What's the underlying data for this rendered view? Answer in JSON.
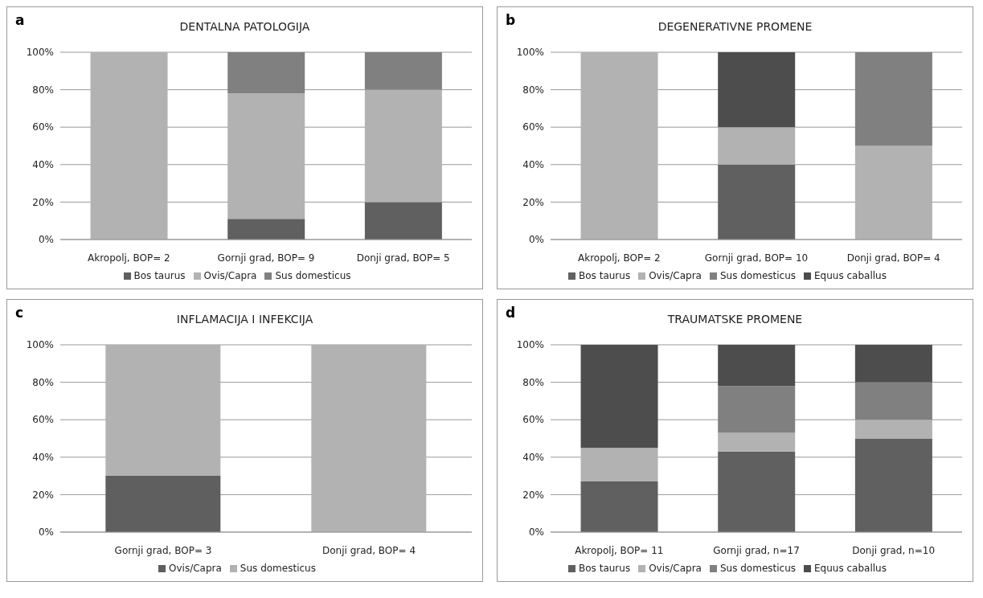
{
  "chart_data": [
    {
      "type": "bar",
      "stacked": true,
      "title": "DENTALNA PATOLOGIJA",
      "annotations": [
        "a"
      ],
      "categories": [
        "Akropolj, BOP= 2",
        "Gornji grad, BOP=  9",
        "Donji grad, BOP= 5"
      ],
      "series": [
        {
          "name": "Bos taurus",
          "color": "#606060",
          "values": [
            0,
            11,
            20
          ]
        },
        {
          "name": "Ovis/Capra",
          "color": "#b2b2b2",
          "values": [
            100,
            67,
            60
          ]
        },
        {
          "name": "Sus domesticus",
          "color": "#808080",
          "values": [
            0,
            22,
            20
          ]
        }
      ],
      "ylim": [
        0,
        100
      ],
      "yticks": [
        {
          "value": 0,
          "label": "0%"
        },
        {
          "value": 20,
          "label": "20%"
        },
        {
          "value": 40,
          "label": "40%"
        },
        {
          "value": 60,
          "label": "60%"
        },
        {
          "value": 80,
          "label": "80%"
        },
        {
          "value": 100,
          "label": "100%"
        }
      ],
      "grid": "y",
      "legend": "bottom"
    },
    {
      "type": "bar",
      "stacked": true,
      "title": "DEGENERATIVNE PROMENE",
      "annotations": [
        "b"
      ],
      "categories": [
        "Akropolj, BOP= 2",
        "Gornji grad, BOP= 10",
        "Donji grad, BOP= 4"
      ],
      "series": [
        {
          "name": "Bos taurus",
          "color": "#606060",
          "values": [
            0,
            40,
            0
          ]
        },
        {
          "name": "Ovis/Capra",
          "color": "#b2b2b2",
          "values": [
            100,
            20,
            50
          ]
        },
        {
          "name": "Sus domesticus",
          "color": "#808080",
          "values": [
            0,
            0,
            50
          ]
        },
        {
          "name": "Equus caballus",
          "color": "#4d4d4d",
          "values": [
            0,
            40,
            0
          ]
        }
      ],
      "ylim": [
        0,
        100
      ],
      "yticks": [
        {
          "value": 0,
          "label": "0%"
        },
        {
          "value": 20,
          "label": "20%"
        },
        {
          "value": 40,
          "label": "40%"
        },
        {
          "value": 60,
          "label": "60%"
        },
        {
          "value": 80,
          "label": "80%"
        },
        {
          "value": 100,
          "label": "100%"
        }
      ],
      "grid": "y",
      "legend": "bottom"
    },
    {
      "type": "bar",
      "stacked": true,
      "title": "INFLAMACIJA I INFEKCIJA",
      "annotations": [
        "c"
      ],
      "categories": [
        "Gornji grad, BOP= 3",
        "Donji grad, BOP= 4"
      ],
      "series": [
        {
          "name": "Ovis/Capra",
          "color": "#5f5f5f",
          "values": [
            30,
            0
          ]
        },
        {
          "name": "Sus domesticus",
          "color": "#b2b2b2",
          "values": [
            70,
            100
          ]
        }
      ],
      "ylim": [
        0,
        100
      ],
      "yticks": [
        {
          "value": 0,
          "label": "0%"
        },
        {
          "value": 20,
          "label": "20%"
        },
        {
          "value": 40,
          "label": "40%"
        },
        {
          "value": 60,
          "label": "60%"
        },
        {
          "value": 80,
          "label": "80%"
        },
        {
          "value": 100,
          "label": "100%"
        }
      ],
      "grid": "y",
      "legend": "bottom"
    },
    {
      "type": "bar",
      "stacked": true,
      "title": "TRAUMATSKE PROMENE",
      "annotations": [
        "d"
      ],
      "categories": [
        "Akropolj, BOP= 11",
        "Gornji grad,  n=17",
        "Donji grad, n=10"
      ],
      "series": [
        {
          "name": "Bos taurus",
          "color": "#606060",
          "values": [
            27,
            43,
            50
          ]
        },
        {
          "name": "Ovis/Capra",
          "color": "#b2b2b2",
          "values": [
            18,
            10,
            10
          ]
        },
        {
          "name": "Sus domesticus",
          "color": "#808080",
          "values": [
            0,
            25,
            20
          ]
        },
        {
          "name": "Equus caballus",
          "color": "#4d4d4d",
          "values": [
            55,
            22,
            20
          ]
        }
      ],
      "ylim": [
        0,
        100
      ],
      "yticks": [
        {
          "value": 0,
          "label": "0%"
        },
        {
          "value": 20,
          "label": "20%"
        },
        {
          "value": 40,
          "label": "40%"
        },
        {
          "value": 60,
          "label": "60%"
        },
        {
          "value": 80,
          "label": "80%"
        },
        {
          "value": 100,
          "label": "100%"
        }
      ],
      "grid": "y",
      "legend": "bottom"
    }
  ]
}
